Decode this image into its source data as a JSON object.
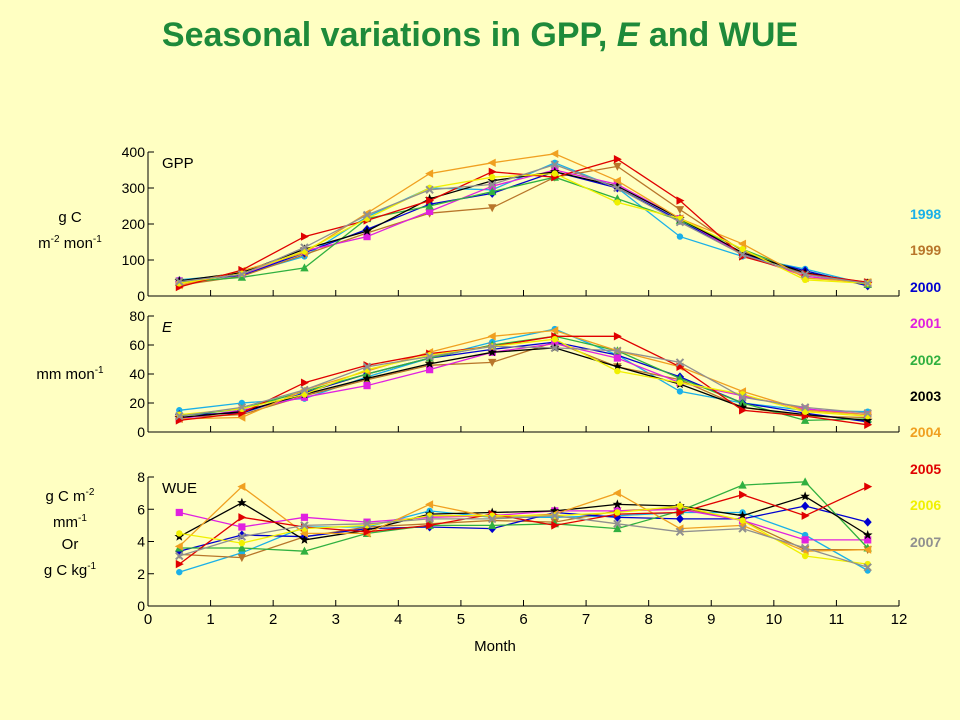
{
  "title": {
    "part1": "Seasonal variations in GPP, ",
    "part2": "E",
    "part3": " and WUE"
  },
  "xlabel": "Month",
  "x_ticks": [
    0,
    1,
    2,
    3,
    4,
    5,
    6,
    7,
    8,
    9,
    10,
    11,
    12
  ],
  "ylabels": {
    "gpp": {
      "l1": "g C",
      "l2a": "m",
      "l2b": "-2",
      "l2c": " mon",
      "l2d": "-1"
    },
    "e": {
      "a": "mm mon",
      "b": "-1"
    },
    "wue": {
      "l1a": "g C m",
      "l1b": "-2",
      "l2a": "mm",
      "l2b": "-1",
      "l3": "Or",
      "l4a": "g C kg",
      "l4b": "-1"
    }
  },
  "legend": [
    {
      "year": "1998",
      "color": "#1AB0E8"
    },
    {
      "year": "1999",
      "color": "#B8762A"
    },
    {
      "year": "2000",
      "color": "#0000D0"
    },
    {
      "year": "2001",
      "color": "#E020E0"
    },
    {
      "year": "2002",
      "color": "#30B040"
    },
    {
      "year": "2003",
      "color": "#000000"
    },
    {
      "year": "2004",
      "color": "#F0A020"
    },
    {
      "year": "2005",
      "color": "#E00000"
    },
    {
      "year": "2006",
      "color": "#F0F000"
    },
    {
      "year": "2007",
      "color": "#909090"
    }
  ],
  "chart_data": [
    {
      "type": "line",
      "panel_label": "GPP",
      "ylim": [
        0,
        400
      ],
      "yticks": [
        0,
        100,
        200,
        300,
        400
      ],
      "x": [
        0.5,
        1.5,
        2.5,
        3.5,
        4.5,
        5.5,
        6.5,
        7.5,
        8.5,
        9.5,
        10.5,
        11.5
      ],
      "series": [
        {
          "name": "1998",
          "values": [
            45,
            60,
            110,
            220,
            300,
            295,
            370,
            300,
            165,
            110,
            75,
            32
          ]
        },
        {
          "name": "1999",
          "values": [
            30,
            55,
            115,
            175,
            230,
            245,
            330,
            360,
            240,
            125,
            60,
            38
          ]
        },
        {
          "name": "2000",
          "values": [
            40,
            58,
            120,
            185,
            255,
            285,
            345,
            300,
            210,
            115,
            70,
            28
          ]
        },
        {
          "name": "2001",
          "values": [
            42,
            60,
            125,
            165,
            235,
            305,
            350,
            310,
            215,
            115,
            55,
            35
          ]
        },
        {
          "name": "2002",
          "values": [
            38,
            52,
            78,
            215,
            250,
            290,
            330,
            270,
            210,
            130,
            62,
            32
          ]
        },
        {
          "name": "2003",
          "values": [
            42,
            65,
            130,
            180,
            270,
            320,
            345,
            305,
            215,
            120,
            65,
            35
          ]
        },
        {
          "name": "2004",
          "values": [
            30,
            70,
            120,
            230,
            340,
            370,
            395,
            320,
            215,
            145,
            50,
            38
          ]
        },
        {
          "name": "2005",
          "values": [
            25,
            72,
            165,
            210,
            265,
            345,
            330,
            380,
            265,
            110,
            62,
            38
          ]
        },
        {
          "name": "2006",
          "values": [
            35,
            62,
            125,
            215,
            300,
            330,
            340,
            260,
            215,
            130,
            45,
            35
          ]
        },
        {
          "name": "2007",
          "values": [
            40,
            60,
            135,
            225,
            295,
            310,
            365,
            300,
            205,
            115,
            60,
            35
          ]
        }
      ]
    },
    {
      "type": "line",
      "panel_label": "E",
      "ylim": [
        0,
        80
      ],
      "yticks": [
        0,
        20,
        40,
        60,
        80
      ],
      "x": [
        0.5,
        1.5,
        2.5,
        3.5,
        4.5,
        5.5,
        6.5,
        7.5,
        8.5,
        9.5,
        10.5,
        11.5
      ],
      "series": [
        {
          "name": "1998",
          "values": [
            15,
            20,
            23,
            38,
            51,
            62,
            71,
            53,
            28,
            20,
            15,
            14
          ]
        },
        {
          "name": "1999",
          "values": [
            10,
            12,
            25,
            36,
            46,
            48,
            62,
            45,
            36,
            17,
            11,
            10
          ]
        },
        {
          "name": "2000",
          "values": [
            12,
            13,
            27,
            40,
            51,
            57,
            62,
            53,
            38,
            20,
            13,
            7
          ]
        },
        {
          "name": "2001",
          "values": [
            9,
            15,
            24,
            32,
            43,
            55,
            61,
            51,
            34,
            25,
            16,
            12
          ]
        },
        {
          "name": "2002",
          "values": [
            11,
            16,
            28,
            40,
            51,
            60,
            66,
            56,
            37,
            20,
            8,
            9
          ]
        },
        {
          "name": "2003",
          "values": [
            10,
            14,
            26,
            37,
            47,
            55,
            58,
            45,
            33,
            17,
            12,
            8
          ]
        },
        {
          "name": "2004",
          "values": [
            9,
            10,
            29,
            42,
            55,
            66,
            70,
            56,
            45,
            28,
            15,
            12
          ]
        },
        {
          "name": "2005",
          "values": [
            8,
            13,
            34,
            46,
            54,
            59,
            66,
            66,
            45,
            15,
            11,
            5
          ]
        },
        {
          "name": "2006",
          "values": [
            12,
            16,
            26,
            43,
            53,
            59,
            64,
            42,
            34,
            26,
            14,
            11
          ]
        },
        {
          "name": "2007",
          "values": [
            11,
            17,
            29,
            45,
            52,
            59,
            58,
            56,
            48,
            24,
            17,
            13
          ]
        }
      ]
    },
    {
      "type": "line",
      "panel_label": "WUE",
      "ylim": [
        0,
        8
      ],
      "yticks": [
        0,
        2,
        4,
        6,
        8
      ],
      "x": [
        0.5,
        1.5,
        2.5,
        3.5,
        4.5,
        5.5,
        6.5,
        7.5,
        8.5,
        9.5,
        10.5,
        11.5
      ],
      "series": [
        {
          "name": "1998",
          "values": [
            2.1,
            3.3,
            4.9,
            4.9,
            5.9,
            5.5,
            5.5,
            5.6,
            5.8,
            5.8,
            4.4,
            2.2
          ]
        },
        {
          "name": "1999",
          "values": [
            3.2,
            3.0,
            4.3,
            4.9,
            5.1,
            5.3,
            5.2,
            5.9,
            6.1,
            5.3,
            3.5,
            3.5
          ]
        },
        {
          "name": "2000",
          "values": [
            3.4,
            4.4,
            4.3,
            4.8,
            4.9,
            4.8,
            5.8,
            5.5,
            5.4,
            5.4,
            6.2,
            5.2
          ]
        },
        {
          "name": "2001",
          "values": [
            5.8,
            4.9,
            5.5,
            5.2,
            5.5,
            5.6,
            5.9,
            5.9,
            6.0,
            5.3,
            4.1,
            4.1
          ]
        },
        {
          "name": "2002",
          "values": [
            3.6,
            3.6,
            3.4,
            4.5,
            5.0,
            5.0,
            5.1,
            4.8,
            5.9,
            7.5,
            7.7,
            3.6
          ]
        },
        {
          "name": "2003",
          "values": [
            4.3,
            6.4,
            4.1,
            4.7,
            5.7,
            5.8,
            5.9,
            6.3,
            6.2,
            5.6,
            6.8,
            4.4
          ]
        },
        {
          "name": "2004",
          "values": [
            3.7,
            7.4,
            4.5,
            4.5,
            6.3,
            5.5,
            5.7,
            7.0,
            4.8,
            5.0,
            3.4,
            3.5
          ]
        },
        {
          "name": "2005",
          "values": [
            2.6,
            5.5,
            4.9,
            4.6,
            5.0,
            5.7,
            5.0,
            5.7,
            5.8,
            6.9,
            5.6,
            7.4
          ]
        },
        {
          "name": "2006",
          "values": [
            4.5,
            3.9,
            4.8,
            5.0,
            5.6,
            5.6,
            5.6,
            5.8,
            6.2,
            5.3,
            3.1,
            2.6
          ]
        },
        {
          "name": "2007",
          "values": [
            3.1,
            4.3,
            5.0,
            5.1,
            5.4,
            5.4,
            5.6,
            5.1,
            4.6,
            4.8,
            3.6,
            2.4
          ]
        }
      ]
    }
  ]
}
